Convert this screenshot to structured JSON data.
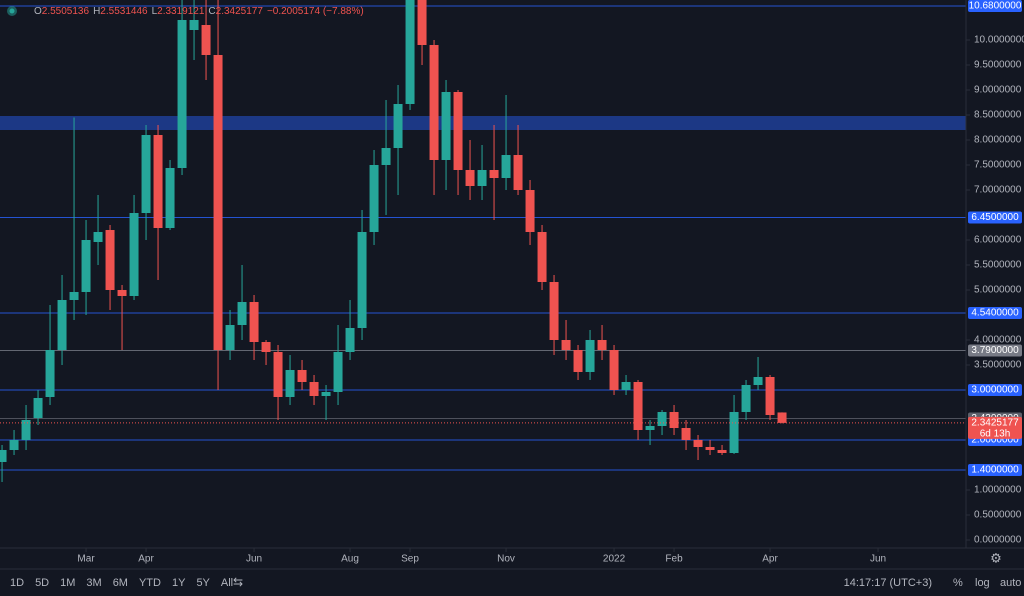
{
  "chart_data": {
    "type": "candlestick",
    "header": [
      "O",
      "2.5505136",
      "H",
      "2.5531446",
      "L",
      "2.3319121",
      "C",
      "2.3425177",
      "−0.2005174 (−7.88%)"
    ],
    "up_color": "#26a69a",
    "down_color": "#ef5350",
    "open": [
      1.56,
      1.8,
      2.0,
      2.44,
      2.86,
      3.8,
      4.8,
      4.96,
      5.96,
      6.2,
      5.0,
      4.88,
      6.54,
      8.1,
      6.24,
      7.44,
      10.2,
      10.3,
      9.7,
      3.8,
      4.3,
      4.76,
      3.96,
      3.76,
      2.86,
      3.4,
      3.16,
      2.88,
      2.96,
      3.76,
      4.24,
      6.16,
      7.5,
      7.84,
      8.72,
      10.9,
      9.9,
      7.6,
      8.96,
      7.4,
      7.08,
      7.4,
      7.24,
      7.7,
      7.0,
      6.16,
      5.16,
      4.0,
      3.8,
      3.36,
      4.0,
      3.8,
      3.0,
      3.16,
      2.2,
      2.28,
      2.56,
      2.24,
      2.0,
      1.86,
      1.8,
      1.74,
      2.56,
      3.1,
      3.26,
      2.5505136
    ],
    "high": [
      1.9,
      2.2,
      2.7,
      3.0,
      4.7,
      5.3,
      8.45,
      6.4,
      6.9,
      6.3,
      5.1,
      6.9,
      8.3,
      8.3,
      7.6,
      10.8,
      10.8,
      10.8,
      10.8,
      4.6,
      5.5,
      4.9,
      4.0,
      3.9,
      3.7,
      3.6,
      3.3,
      3.1,
      4.3,
      4.8,
      6.6,
      7.8,
      8.8,
      9.1,
      11.2,
      11.2,
      10.0,
      9.2,
      9.0,
      8.0,
      7.9,
      8.3,
      8.9,
      8.3,
      7.2,
      6.3,
      5.3,
      4.4,
      3.9,
      4.2,
      4.3,
      3.9,
      3.3,
      3.2,
      2.4,
      2.6,
      2.7,
      2.4,
      2.1,
      2.0,
      1.9,
      2.9,
      3.2,
      3.66,
      3.3,
      2.5531446
    ],
    "low": [
      1.16,
      1.7,
      1.8,
      2.3,
      2.7,
      3.5,
      4.4,
      4.5,
      5.5,
      4.6,
      3.8,
      4.8,
      6.0,
      5.2,
      6.2,
      7.3,
      9.6,
      9.2,
      3.0,
      3.6,
      4.0,
      3.6,
      3.5,
      2.4,
      2.7,
      3.0,
      2.7,
      2.4,
      2.7,
      3.6,
      4.0,
      5.9,
      6.5,
      6.9,
      8.6,
      9.5,
      6.9,
      7.0,
      6.9,
      6.8,
      6.8,
      6.4,
      7.0,
      6.9,
      5.9,
      5.0,
      3.7,
      3.6,
      3.2,
      3.2,
      3.6,
      2.9,
      2.9,
      2.0,
      1.9,
      2.1,
      2.1,
      1.8,
      1.6,
      1.7,
      1.7,
      1.72,
      2.4,
      3.0,
      2.4,
      2.3319121
    ],
    "close": [
      1.8,
      2.0,
      2.4,
      2.84,
      3.8,
      4.8,
      4.96,
      6.0,
      6.16,
      5.0,
      4.88,
      6.54,
      8.1,
      6.24,
      7.44,
      10.4,
      10.4,
      9.7,
      3.8,
      4.3,
      4.76,
      3.96,
      3.76,
      2.86,
      3.4,
      3.16,
      2.88,
      2.96,
      3.76,
      4.24,
      6.16,
      7.5,
      7.84,
      8.72,
      10.9,
      9.9,
      7.6,
      8.96,
      7.4,
      7.08,
      7.4,
      7.24,
      7.7,
      7.0,
      6.16,
      5.16,
      4.0,
      3.8,
      3.36,
      4.0,
      3.8,
      3.0,
      3.16,
      2.2,
      2.28,
      2.56,
      2.24,
      2.0,
      1.86,
      1.8,
      1.74,
      2.56,
      3.1,
      3.26,
      2.5,
      2.3425177
    ],
    "xlim": [
      -0.17,
      80.33
    ],
    "xticks": [
      {
        "value": 7,
        "label": "Mar"
      },
      {
        "value": 12,
        "label": "Apr"
      },
      {
        "value": 21,
        "label": "Jun"
      },
      {
        "value": 29,
        "label": "Aug"
      },
      {
        "value": 34,
        "label": "Sep"
      },
      {
        "value": 42,
        "label": "Nov"
      },
      {
        "value": 51,
        "label": "2022"
      },
      {
        "value": 56,
        "label": "Feb"
      },
      {
        "value": 64,
        "label": "Apr"
      },
      {
        "value": 73,
        "label": "Jun"
      }
    ],
    "ylim": [
      -0.16,
      10.8
    ],
    "yticks": [
      {
        "value": 0,
        "label": "0.0000000"
      },
      {
        "value": 0.5,
        "label": "0.5000000"
      },
      {
        "value": 1,
        "label": "1.0000000"
      },
      {
        "value": 3.5,
        "label": "3.5000000"
      },
      {
        "value": 4,
        "label": "4.0000000"
      },
      {
        "value": 5,
        "label": "5.0000000"
      },
      {
        "value": 5.5,
        "label": "5.5000000"
      },
      {
        "value": 6,
        "label": "6.0000000"
      },
      {
        "value": 7,
        "label": "7.0000000"
      },
      {
        "value": 7.5,
        "label": "7.5000000"
      },
      {
        "value": 8,
        "label": "8.0000000"
      },
      {
        "value": 8.5,
        "label": "8.5000000"
      },
      {
        "value": 9,
        "label": "9.0000000"
      },
      {
        "value": 9.5,
        "label": "9.5000000"
      },
      {
        "value": 10,
        "label": "10.0000000"
      }
    ],
    "zone": [
      8.2,
      8.48
    ],
    "levels": [
      {
        "value": 10.68,
        "label": "10.6800000",
        "color": "#2962ff"
      },
      {
        "value": 6.45,
        "label": "6.4500000",
        "color": "#2962ff"
      },
      {
        "value": 4.54,
        "label": "4.5400000",
        "color": "#2962ff"
      },
      {
        "value": 3.79,
        "label": "3.7900000",
        "color": "#787b86"
      },
      {
        "value": 3.0,
        "label": "3.0000000",
        "color": "#2962ff"
      },
      {
        "value": 2.43,
        "label": "2.4300000",
        "color": "#5d606b"
      },
      {
        "value": 2.0,
        "label": "2.0000000",
        "color": "#2962ff"
      },
      {
        "value": 1.4,
        "label": "1.4000000",
        "color": "#2962ff"
      }
    ],
    "last_price": {
      "value": 2.3425177,
      "label": "2.3425177",
      "countdown": "6d 13h"
    },
    "ranges": [
      "1D",
      "5D",
      "1M",
      "3M",
      "6M",
      "YTD",
      "1Y",
      "5Y",
      "All"
    ],
    "clock": "14:17:17 (UTC+3)",
    "scale_buttons": [
      "%",
      "log",
      "auto"
    ]
  }
}
